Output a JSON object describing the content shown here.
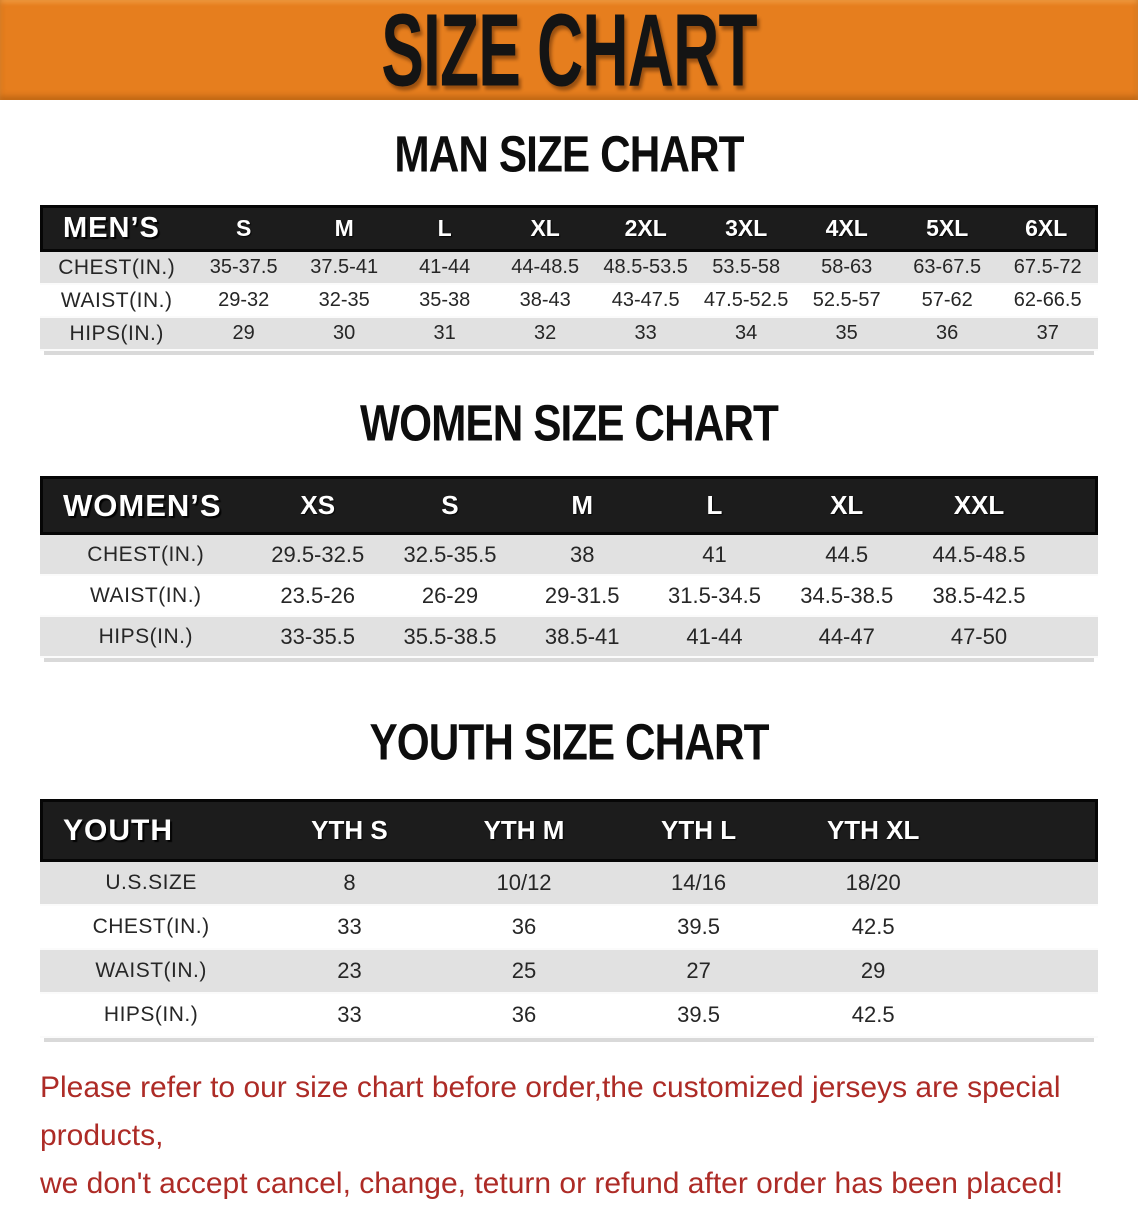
{
  "banner": {
    "title": "SIZE CHART"
  },
  "colors": {
    "banner_bg": "#E67E1E",
    "header_bar_bg": "#1C1C1C",
    "row_stripe_gray": "#E1E1E1",
    "disclaimer_red": "#AD2B26"
  },
  "sections": [
    {
      "heading": "MAN SIZE CHART",
      "table": {
        "label": "MEN’S",
        "columns": [
          "S",
          "M",
          "L",
          "XL",
          "2XL",
          "3XL",
          "4XL",
          "5XL",
          "6XL"
        ],
        "rows": [
          {
            "label": "CHEST(IN.)",
            "values": [
              "35-37.5",
              "37.5-41",
              "41-44",
              "44-48.5",
              "48.5-53.5",
              "53.5-58",
              "58-63",
              "63-67.5",
              "67.5-72"
            ]
          },
          {
            "label": "WAIST(IN.)",
            "values": [
              "29-32",
              "32-35",
              "35-38",
              "38-43",
              "43-47.5",
              "47.5-52.5",
              "52.5-57",
              "57-62",
              "62-66.5"
            ]
          },
          {
            "label": "HIPS(IN.)",
            "values": [
              "29",
              "30",
              "31",
              "32",
              "33",
              "34",
              "35",
              "36",
              "37"
            ]
          }
        ]
      }
    },
    {
      "heading": "WOMEN SIZE CHART",
      "table": {
        "label": "WOMEN’S",
        "columns": [
          "XS",
          "S",
          "M",
          "L",
          "XL",
          "XXL"
        ],
        "rows": [
          {
            "label": "CHEST(IN.)",
            "values": [
              "29.5-32.5",
              "32.5-35.5",
              "38",
              "41",
              "44.5",
              "44.5-48.5"
            ]
          },
          {
            "label": "WAIST(IN.)",
            "values": [
              "23.5-26",
              "26-29",
              "29-31.5",
              "31.5-34.5",
              "34.5-38.5",
              "38.5-42.5"
            ]
          },
          {
            "label": "HIPS(IN.)",
            "values": [
              "33-35.5",
              "35.5-38.5",
              "38.5-41",
              "41-44",
              "44-47",
              "47-50"
            ]
          }
        ]
      }
    },
    {
      "heading": "YOUTH SIZE CHART",
      "table": {
        "label": "YOUTH",
        "columns": [
          "YTH S",
          "YTH M",
          "YTH L",
          "YTH XL"
        ],
        "rows": [
          {
            "label": "U.S.SIZE",
            "values": [
              "8",
              "10/12",
              "14/16",
              "18/20"
            ]
          },
          {
            "label": "CHEST(IN.)",
            "values": [
              "33",
              "36",
              "39.5",
              "42.5"
            ]
          },
          {
            "label": "WAIST(IN.)",
            "values": [
              "23",
              "25",
              "27",
              "29"
            ]
          },
          {
            "label": "HIPS(IN.)",
            "values": [
              "33",
              "36",
              "39.5",
              "42.5"
            ]
          }
        ]
      }
    }
  ],
  "disclaimer": {
    "line1": "Please refer to our size chart before order,the customized jerseys are special products,",
    "line2": "we don't accept cancel, change, teturn or refund after order has been placed!"
  }
}
